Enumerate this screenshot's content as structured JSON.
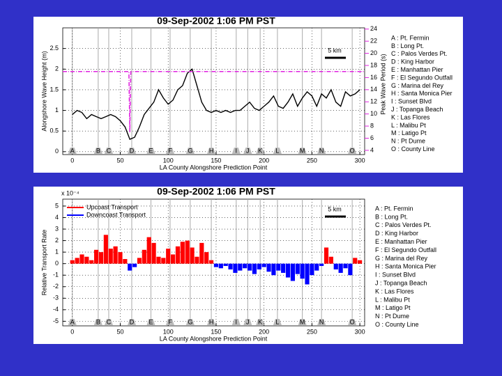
{
  "chart_data": [
    {
      "type": "line",
      "title": "09-Sep-2002  1:06 PM PST",
      "xlabel": "LA County Alongshore Prediction Point",
      "ylabel": "Alongshore Wave Height (m)",
      "y2label": "Peak Wave Period (s)",
      "xlim": [
        -10,
        305
      ],
      "xticks": [
        0,
        50,
        100,
        150,
        200,
        250,
        300
      ],
      "ylim": [
        -0.07,
        3.0
      ],
      "yticks": [
        0,
        0.5,
        1,
        1.5,
        2,
        2.5
      ],
      "y2lim": [
        3.3,
        24.2
      ],
      "y2ticks": [
        4,
        6,
        8,
        10,
        12,
        14,
        16,
        18,
        20,
        22,
        24
      ],
      "grid": true,
      "scale_bar": "5 km",
      "series": [
        {
          "color": "#000000",
          "x": [
            0,
            5,
            10,
            15,
            20,
            25,
            30,
            35,
            40,
            45,
            50,
            55,
            60,
            65,
            70,
            75,
            80,
            85,
            90,
            95,
            100,
            105,
            110,
            115,
            120,
            125,
            130,
            135,
            140,
            145,
            150,
            155,
            160,
            165,
            170,
            175,
            180,
            185,
            190,
            195,
            200,
            205,
            210,
            215,
            220,
            225,
            230,
            235,
            240,
            245,
            250,
            255,
            260,
            265,
            270,
            275,
            280,
            285,
            290,
            295,
            300
          ],
          "values": [
            0.9,
            1.0,
            0.95,
            0.8,
            0.9,
            0.85,
            0.8,
            0.85,
            0.9,
            0.85,
            0.75,
            0.6,
            0.3,
            0.35,
            0.6,
            0.9,
            1.05,
            1.2,
            1.5,
            1.3,
            1.15,
            1.25,
            1.5,
            1.6,
            1.9,
            2.0,
            1.6,
            1.2,
            1.0,
            0.95,
            1.0,
            0.95,
            1.0,
            0.95,
            1.0,
            1.0,
            1.1,
            1.2,
            1.05,
            1.0,
            1.1,
            1.2,
            1.35,
            1.1,
            1.05,
            1.2,
            1.4,
            1.1,
            1.3,
            1.45,
            1.35,
            1.1,
            1.4,
            1.3,
            1.5,
            1.2,
            1.1,
            1.45,
            1.35,
            1.4,
            1.5
          ]
        },
        {
          "color": "#e020e0",
          "axis": "y2",
          "x": [
            -10,
            59,
            60,
            61,
            62,
            305
          ],
          "values": [
            17,
            17,
            7,
            17,
            17,
            17
          ]
        }
      ],
      "points": [
        {
          "label": "A",
          "x": 0
        },
        {
          "label": "B",
          "x": 27
        },
        {
          "label": "C",
          "x": 38
        },
        {
          "label": "D",
          "x": 62
        },
        {
          "label": "E",
          "x": 82
        },
        {
          "label": "F",
          "x": 102
        },
        {
          "label": "G",
          "x": 123
        },
        {
          "label": "H",
          "x": 145
        },
        {
          "label": "I",
          "x": 171
        },
        {
          "label": "J",
          "x": 183
        },
        {
          "label": "K",
          "x": 196
        },
        {
          "label": "L",
          "x": 214
        },
        {
          "label": "M",
          "x": 240
        },
        {
          "label": "N",
          "x": 260
        },
        {
          "label": "O",
          "x": 292
        }
      ],
      "point_legend": [
        "A : Pt. Fermin",
        "B : Long Pt.",
        "C : Palos Verdes Pt.",
        "D : King Harbor",
        "E : Manhattan Pier",
        "F : El Segundo Outfall",
        "G : Marina del Rey",
        "H : Santa Monica Pier",
        "I : Sunset Blvd",
        "J : Topanga Beach",
        "K : Las Flores",
        "L : Malibu Pt",
        "M : Latigo Pt",
        "N : Pt Dume",
        "O : County Line"
      ]
    },
    {
      "type": "bar",
      "title": "09-Sep-2002  1:06 PM PST",
      "xlabel": "LA County Alongshore Prediction Point",
      "ylabel": "Relative Transport Rate",
      "y_multiplier": "x 10⁻⁴",
      "xlim": [
        -10,
        305
      ],
      "xticks": [
        0,
        50,
        100,
        150,
        200,
        250,
        300
      ],
      "ylim": [
        -5.4,
        5.6
      ],
      "yticks": [
        5,
        4,
        3,
        2,
        1,
        0,
        -1,
        -2,
        -3,
        -4,
        -5
      ],
      "grid": true,
      "scale_bar": "5 km",
      "x": [
        0,
        5,
        10,
        15,
        20,
        25,
        30,
        35,
        40,
        45,
        50,
        55,
        60,
        65,
        70,
        75,
        80,
        85,
        90,
        95,
        100,
        105,
        110,
        115,
        120,
        125,
        130,
        135,
        140,
        145,
        150,
        155,
        160,
        165,
        170,
        175,
        180,
        185,
        190,
        195,
        200,
        205,
        210,
        215,
        220,
        225,
        230,
        235,
        240,
        245,
        250,
        255,
        260,
        265,
        270,
        275,
        280,
        285,
        290,
        295,
        300
      ],
      "series": [
        {
          "name": "Upcoast Transport",
          "color": "#ff0000",
          "values": [
            0.3,
            0.5,
            0.8,
            0.6,
            0.3,
            1.2,
            1.0,
            2.5,
            1.3,
            1.5,
            1.0,
            0.4,
            null,
            null,
            0.5,
            1.2,
            2.3,
            1.8,
            0.6,
            0.5,
            1.3,
            0.8,
            1.5,
            1.9,
            2.0,
            1.4,
            0.6,
            1.8,
            1.0,
            0.3,
            null,
            null,
            null,
            null,
            null,
            null,
            null,
            null,
            null,
            null,
            null,
            null,
            null,
            null,
            null,
            null,
            null,
            null,
            null,
            null,
            null,
            null,
            null,
            1.4,
            0.6,
            null,
            null,
            null,
            null,
            0.5,
            0.3
          ]
        },
        {
          "name": "Downcoast Transport",
          "color": "#0000ff",
          "values": [
            null,
            null,
            null,
            null,
            null,
            null,
            null,
            null,
            null,
            null,
            null,
            null,
            -0.6,
            -0.3,
            null,
            null,
            null,
            null,
            null,
            null,
            null,
            null,
            null,
            null,
            null,
            null,
            null,
            null,
            null,
            null,
            -0.3,
            -0.4,
            -0.2,
            -0.5,
            -0.8,
            -0.6,
            -0.4,
            -0.6,
            -0.9,
            -0.5,
            -0.3,
            -0.7,
            -1.0,
            -0.6,
            -0.8,
            -1.2,
            -1.5,
            -0.9,
            -1.3,
            -1.8,
            -1.0,
            -0.6,
            -0.2,
            null,
            null,
            -0.5,
            -0.8,
            -0.4,
            -1.0,
            null,
            null
          ]
        }
      ],
      "points": [
        {
          "label": "A",
          "x": 0
        },
        {
          "label": "B",
          "x": 27
        },
        {
          "label": "C",
          "x": 38
        },
        {
          "label": "D",
          "x": 62
        },
        {
          "label": "E",
          "x": 82
        },
        {
          "label": "F",
          "x": 102
        },
        {
          "label": "G",
          "x": 123
        },
        {
          "label": "H",
          "x": 145
        },
        {
          "label": "I",
          "x": 171
        },
        {
          "label": "J",
          "x": 183
        },
        {
          "label": "K",
          "x": 196
        },
        {
          "label": "L",
          "x": 214
        },
        {
          "label": "M",
          "x": 240
        },
        {
          "label": "N",
          "x": 260
        },
        {
          "label": "O",
          "x": 292
        }
      ],
      "point_legend": [
        "A : Pt. Fermin",
        "B : Long Pt.",
        "C : Palos Verdes Pt.",
        "D : King Harbor",
        "E : Manhattan Pier",
        "F : El Segundo Outfall",
        "G : Marina del Rey",
        "H : Santa Monica Pier",
        "I : Sunset Blvd",
        "J : Topanga Beach",
        "K : Las Flores",
        "L : Malibu Pt",
        "M : Latigo Pt",
        "N : Pt Dume",
        "O : County Line"
      ]
    }
  ]
}
